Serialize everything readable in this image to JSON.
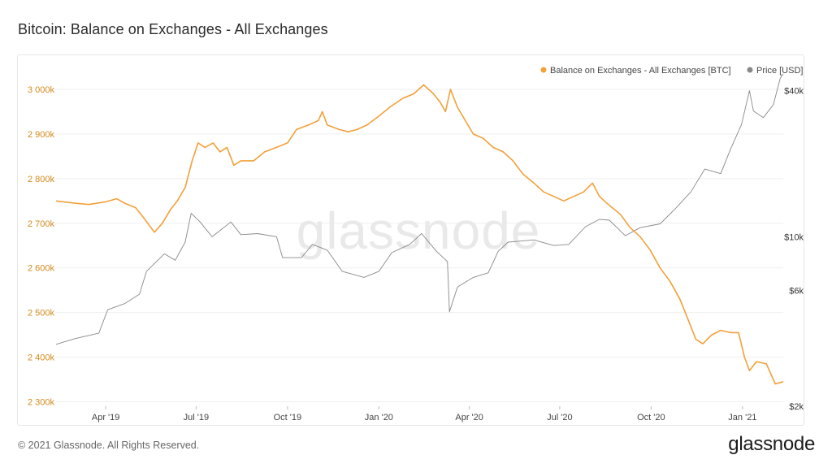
{
  "title": "Bitcoin: Balance on Exchanges - All Exchanges",
  "footer": {
    "copyright": "© 2021 Glassnode. All Rights Reserved.",
    "logo": "glassnode"
  },
  "watermark": "glassnode",
  "chart_data": {
    "type": "line",
    "x_ticks": [
      "Apr '19",
      "Jul '19",
      "Oct '19",
      "Jan '20",
      "Apr '20",
      "Jul '20",
      "Oct '20",
      "Jan '21"
    ],
    "x_range": [
      "2019-02-10",
      "2021-02-11"
    ],
    "y_left": {
      "ticks": [
        2300000,
        2400000,
        2500000,
        2600000,
        2700000,
        2800000,
        2900000,
        3000000
      ],
      "tick_labels": [
        "2 300k",
        "2 400k",
        "2 500k",
        "2 600k",
        "2 700k",
        "2 800k",
        "2 900k",
        "3 000k"
      ],
      "range": [
        2290000,
        3040000
      ]
    },
    "y_right": {
      "scale": "log",
      "ticks": [
        2000,
        6000,
        10000,
        40000
      ],
      "tick_labels": [
        "$2k",
        "$6k",
        "$10k",
        "$40k"
      ],
      "range": [
        2000,
        48000
      ]
    },
    "legend_position": "top-right",
    "grid": true,
    "series": [
      {
        "name": "Balance on Exchanges - All Exchanges [BTC]",
        "color": "#f2a03a",
        "axis": "left",
        "points": [
          [
            "2019-02-10",
            2750000
          ],
          [
            "2019-03-01",
            2745000
          ],
          [
            "2019-03-15",
            2742000
          ],
          [
            "2019-04-01",
            2748000
          ],
          [
            "2019-04-12",
            2755000
          ],
          [
            "2019-04-20",
            2745000
          ],
          [
            "2019-05-01",
            2735000
          ],
          [
            "2019-05-10",
            2710000
          ],
          [
            "2019-05-20",
            2680000
          ],
          [
            "2019-05-28",
            2700000
          ],
          [
            "2019-06-05",
            2730000
          ],
          [
            "2019-06-12",
            2750000
          ],
          [
            "2019-06-20",
            2780000
          ],
          [
            "2019-06-27",
            2840000
          ],
          [
            "2019-07-03",
            2880000
          ],
          [
            "2019-07-10",
            2870000
          ],
          [
            "2019-07-18",
            2880000
          ],
          [
            "2019-07-25",
            2860000
          ],
          [
            "2019-08-01",
            2870000
          ],
          [
            "2019-08-08",
            2830000
          ],
          [
            "2019-08-15",
            2840000
          ],
          [
            "2019-08-28",
            2840000
          ],
          [
            "2019-09-08",
            2860000
          ],
          [
            "2019-09-20",
            2870000
          ],
          [
            "2019-10-01",
            2880000
          ],
          [
            "2019-10-10",
            2910000
          ],
          [
            "2019-10-22",
            2920000
          ],
          [
            "2019-11-01",
            2930000
          ],
          [
            "2019-11-05",
            2950000
          ],
          [
            "2019-11-10",
            2920000
          ],
          [
            "2019-11-22",
            2910000
          ],
          [
            "2019-12-01",
            2905000
          ],
          [
            "2019-12-10",
            2910000
          ],
          [
            "2019-12-20",
            2920000
          ],
          [
            "2020-01-01",
            2940000
          ],
          [
            "2020-01-12",
            2960000
          ],
          [
            "2020-01-25",
            2980000
          ],
          [
            "2020-02-05",
            2990000
          ],
          [
            "2020-02-15",
            3010000
          ],
          [
            "2020-02-25",
            2990000
          ],
          [
            "2020-03-03",
            2970000
          ],
          [
            "2020-03-08",
            2950000
          ],
          [
            "2020-03-13",
            3000000
          ],
          [
            "2020-03-20",
            2960000
          ],
          [
            "2020-03-28",
            2930000
          ],
          [
            "2020-04-05",
            2900000
          ],
          [
            "2020-04-15",
            2890000
          ],
          [
            "2020-04-25",
            2870000
          ],
          [
            "2020-05-05",
            2860000
          ],
          [
            "2020-05-15",
            2840000
          ],
          [
            "2020-05-25",
            2810000
          ],
          [
            "2020-06-05",
            2790000
          ],
          [
            "2020-06-15",
            2770000
          ],
          [
            "2020-06-25",
            2760000
          ],
          [
            "2020-07-05",
            2750000
          ],
          [
            "2020-07-15",
            2760000
          ],
          [
            "2020-07-25",
            2770000
          ],
          [
            "2020-08-03",
            2790000
          ],
          [
            "2020-08-10",
            2760000
          ],
          [
            "2020-08-20",
            2740000
          ],
          [
            "2020-08-31",
            2720000
          ],
          [
            "2020-09-10",
            2690000
          ],
          [
            "2020-09-20",
            2670000
          ],
          [
            "2020-09-30",
            2640000
          ],
          [
            "2020-10-10",
            2600000
          ],
          [
            "2020-10-20",
            2570000
          ],
          [
            "2020-10-30",
            2530000
          ],
          [
            "2020-11-08",
            2480000
          ],
          [
            "2020-11-15",
            2440000
          ],
          [
            "2020-11-22",
            2430000
          ],
          [
            "2020-12-01",
            2450000
          ],
          [
            "2020-12-10",
            2460000
          ],
          [
            "2020-12-20",
            2455000
          ],
          [
            "2020-12-28",
            2455000
          ],
          [
            "2021-01-03",
            2400000
          ],
          [
            "2021-01-08",
            2370000
          ],
          [
            "2021-01-15",
            2390000
          ],
          [
            "2021-01-25",
            2385000
          ],
          [
            "2021-02-03",
            2340000
          ],
          [
            "2021-02-11",
            2345000
          ]
        ]
      },
      {
        "name": "Price [USD]",
        "color": "#888888",
        "axis": "right",
        "points": [
          [
            "2019-02-10",
            3600
          ],
          [
            "2019-03-01",
            3800
          ],
          [
            "2019-03-25",
            4000
          ],
          [
            "2019-04-03",
            5000
          ],
          [
            "2019-04-20",
            5300
          ],
          [
            "2019-05-05",
            5800
          ],
          [
            "2019-05-12",
            7200
          ],
          [
            "2019-05-30",
            8500
          ],
          [
            "2019-06-10",
            8000
          ],
          [
            "2019-06-20",
            9500
          ],
          [
            "2019-06-26",
            12500
          ],
          [
            "2019-07-05",
            11500
          ],
          [
            "2019-07-17",
            10000
          ],
          [
            "2019-08-05",
            11500
          ],
          [
            "2019-08-15",
            10200
          ],
          [
            "2019-09-01",
            10300
          ],
          [
            "2019-09-20",
            10000
          ],
          [
            "2019-09-26",
            8200
          ],
          [
            "2019-10-15",
            8200
          ],
          [
            "2019-10-26",
            9300
          ],
          [
            "2019-11-10",
            8800
          ],
          [
            "2019-11-25",
            7200
          ],
          [
            "2019-12-17",
            6800
          ],
          [
            "2020-01-01",
            7200
          ],
          [
            "2020-01-14",
            8600
          ],
          [
            "2020-02-01",
            9300
          ],
          [
            "2020-02-13",
            10300
          ],
          [
            "2020-02-28",
            8700
          ],
          [
            "2020-03-10",
            7900
          ],
          [
            "2020-03-12",
            4900
          ],
          [
            "2020-03-20",
            6200
          ],
          [
            "2020-04-05",
            6800
          ],
          [
            "2020-04-20",
            7100
          ],
          [
            "2020-04-30",
            8700
          ],
          [
            "2020-05-10",
            9500
          ],
          [
            "2020-06-05",
            9700
          ],
          [
            "2020-06-25",
            9200
          ],
          [
            "2020-07-10",
            9300
          ],
          [
            "2020-07-27",
            11000
          ],
          [
            "2020-08-10",
            11800
          ],
          [
            "2020-08-20",
            11700
          ],
          [
            "2020-09-05",
            10100
          ],
          [
            "2020-09-20",
            10900
          ],
          [
            "2020-10-10",
            11300
          ],
          [
            "2020-10-25",
            13000
          ],
          [
            "2020-11-10",
            15300
          ],
          [
            "2020-11-24",
            19000
          ],
          [
            "2020-12-10",
            18200
          ],
          [
            "2020-12-20",
            23000
          ],
          [
            "2020-12-31",
            29000
          ],
          [
            "2021-01-08",
            40000
          ],
          [
            "2021-01-12",
            33000
          ],
          [
            "2021-01-22",
            31000
          ],
          [
            "2021-02-01",
            35000
          ],
          [
            "2021-02-08",
            45000
          ],
          [
            "2021-02-11",
            47000
          ]
        ]
      }
    ]
  }
}
